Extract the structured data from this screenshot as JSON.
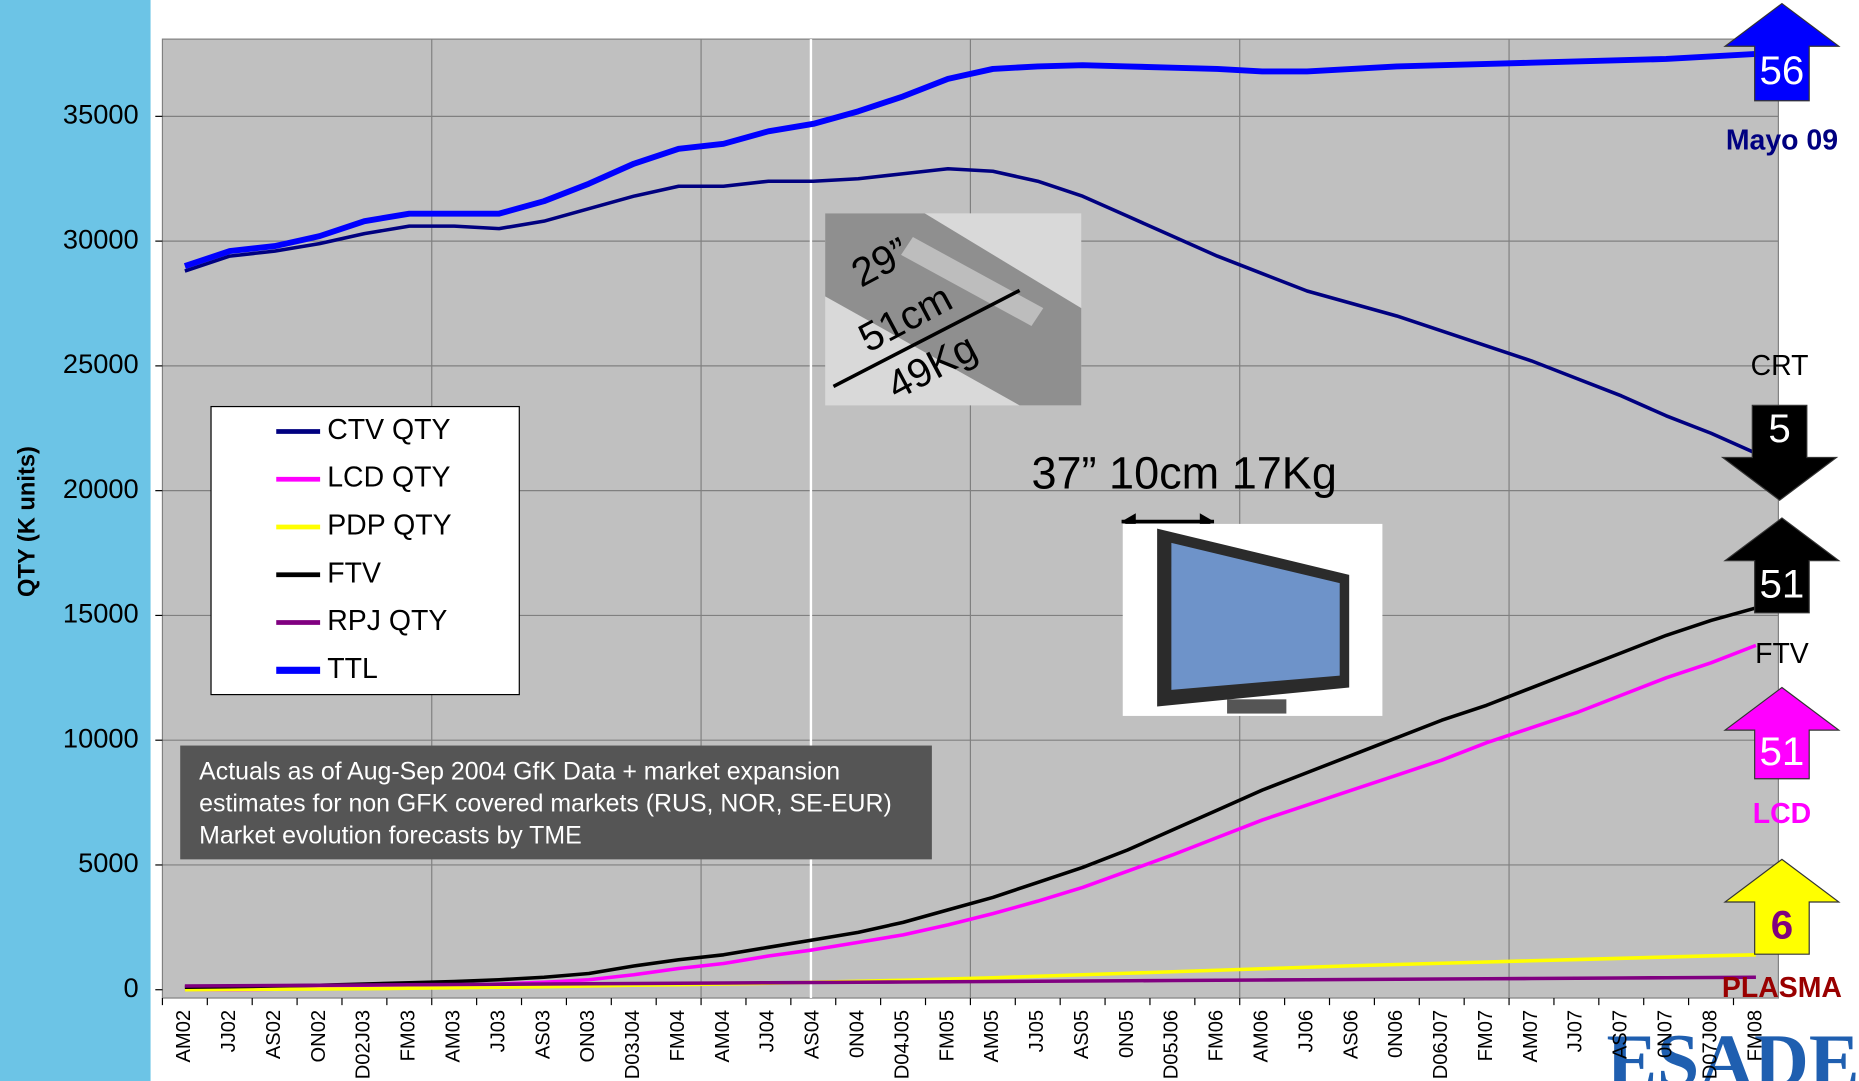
{
  "chart_data": {
    "type": "line",
    "ylabel": "QTY (K units)",
    "categories": [
      "AM02",
      "JJ02",
      "AS02",
      "ON02",
      "D02J03",
      "FM03",
      "AM03",
      "JJ03",
      "AS03",
      "ON03",
      "D03J04",
      "FM04",
      "AM04",
      "JJ04",
      "AS04",
      "0N04",
      "D04J05",
      "FM05",
      "AM05",
      "JJ05",
      "AS05",
      "0N05",
      "D05J06",
      "FM06",
      "AM06",
      "JJ06",
      "AS06",
      "0N06",
      "D06J07",
      "FM07",
      "AM07",
      "JJ07",
      "AS07",
      "0N07",
      "D07J08",
      "FM08"
    ],
    "series": [
      {
        "name": "CTV QTY",
        "color": "#000080",
        "values": [
          28800,
          29400,
          29600,
          29900,
          30300,
          30600,
          30600,
          30500,
          30800,
          31300,
          31800,
          32200,
          32200,
          32400,
          32400,
          32500,
          32700,
          32900,
          32800,
          32400,
          31800,
          31000,
          30200,
          29400,
          28700,
          28000,
          27500,
          27000,
          26400,
          25800,
          25200,
          24500,
          23800,
          23000,
          22300,
          21500
        ]
      },
      {
        "name": "LCD QTY",
        "color": "#ff00ff",
        "values": [
          0,
          0,
          20,
          50,
          80,
          120,
          170,
          230,
          300,
          400,
          600,
          850,
          1050,
          1350,
          1600,
          1900,
          2200,
          2600,
          3050,
          3550,
          4100,
          4750,
          5400,
          6100,
          6800,
          7400,
          8000,
          8600,
          9200,
          9900,
          10500,
          11100,
          11800,
          12500,
          13100,
          13800
        ]
      },
      {
        "name": "PDP QTY",
        "color": "#ffff00",
        "values": [
          0,
          10,
          20,
          30,
          40,
          60,
          80,
          100,
          120,
          150,
          180,
          200,
          230,
          260,
          300,
          340,
          380,
          430,
          480,
          540,
          600,
          660,
          720,
          780,
          840,
          900,
          960,
          1010,
          1060,
          1110,
          1160,
          1210,
          1260,
          1310,
          1360,
          1400
        ]
      },
      {
        "name": "FTV",
        "color": "#000000",
        "values": [
          100,
          120,
          150,
          180,
          230,
          280,
          330,
          400,
          500,
          650,
          950,
          1200,
          1400,
          1700,
          2000,
          2300,
          2700,
          3200,
          3700,
          4300,
          4900,
          5600,
          6400,
          7200,
          8000,
          8700,
          9400,
          10100,
          10800,
          11400,
          12100,
          12800,
          13500,
          14200,
          14800,
          15300
        ]
      },
      {
        "name": "RPJ QTY",
        "color": "#800080",
        "values": [
          150,
          160,
          170,
          180,
          190,
          200,
          210,
          220,
          230,
          240,
          250,
          260,
          270,
          280,
          290,
          300,
          310,
          320,
          330,
          340,
          350,
          360,
          370,
          380,
          390,
          400,
          410,
          420,
          430,
          440,
          450,
          460,
          470,
          480,
          490,
          500
        ]
      },
      {
        "name": "TTL",
        "color": "#0000ff",
        "values": [
          29000,
          29600,
          29800,
          30200,
          30800,
          31100,
          31100,
          31100,
          31600,
          32300,
          33100,
          33700,
          33900,
          34400,
          34700,
          35200,
          35800,
          36500,
          36900,
          37000,
          37050,
          37000,
          36950,
          36900,
          36800,
          36800,
          36900,
          37000,
          37050,
          37100,
          37150,
          37200,
          37250,
          37300,
          37400,
          37500
        ]
      }
    ],
    "ylim": [
      0,
      38000
    ],
    "yticks": [
      0,
      5000,
      10000,
      15000,
      20000,
      25000,
      30000,
      35000
    ],
    "grid": true,
    "legend": "left",
    "notes": [
      "Actuals as of Aug-Sep 2004 GfK Data + market expansion",
      "estimates for non GFK covered markets (RUS, NOR, SE-EUR)",
      "Market evolution forecasts by TME"
    ],
    "callouts": [
      "37” 10cm 17Kg",
      "29”",
      "51cm",
      "49Kg"
    ],
    "arrows": [
      {
        "label": "56",
        "caption": "Mayo 09",
        "color": "#0000ff",
        "text_color": "#ffffff",
        "caption_color": "#000080",
        "direction": "up"
      },
      {
        "label": "5",
        "caption": "CRT",
        "color": "#000000",
        "text_color": "#ffffff",
        "caption_color": "#000000",
        "direction": "down"
      },
      {
        "label": "51",
        "caption": "FTV",
        "color": "#000000",
        "text_color": "#ffffff",
        "caption_color": "#000000",
        "direction": "up"
      },
      {
        "label": "51",
        "caption": "LCD",
        "color": "#ff00ff",
        "text_color": "#ffffff",
        "caption_color": "#ff00ff",
        "direction": "up"
      },
      {
        "label": "6",
        "caption": "PLASMA",
        "color": "#ffff00",
        "text_color": "#800080",
        "caption_color": "#990000",
        "direction": "up"
      }
    ],
    "logo": "ESADE"
  }
}
